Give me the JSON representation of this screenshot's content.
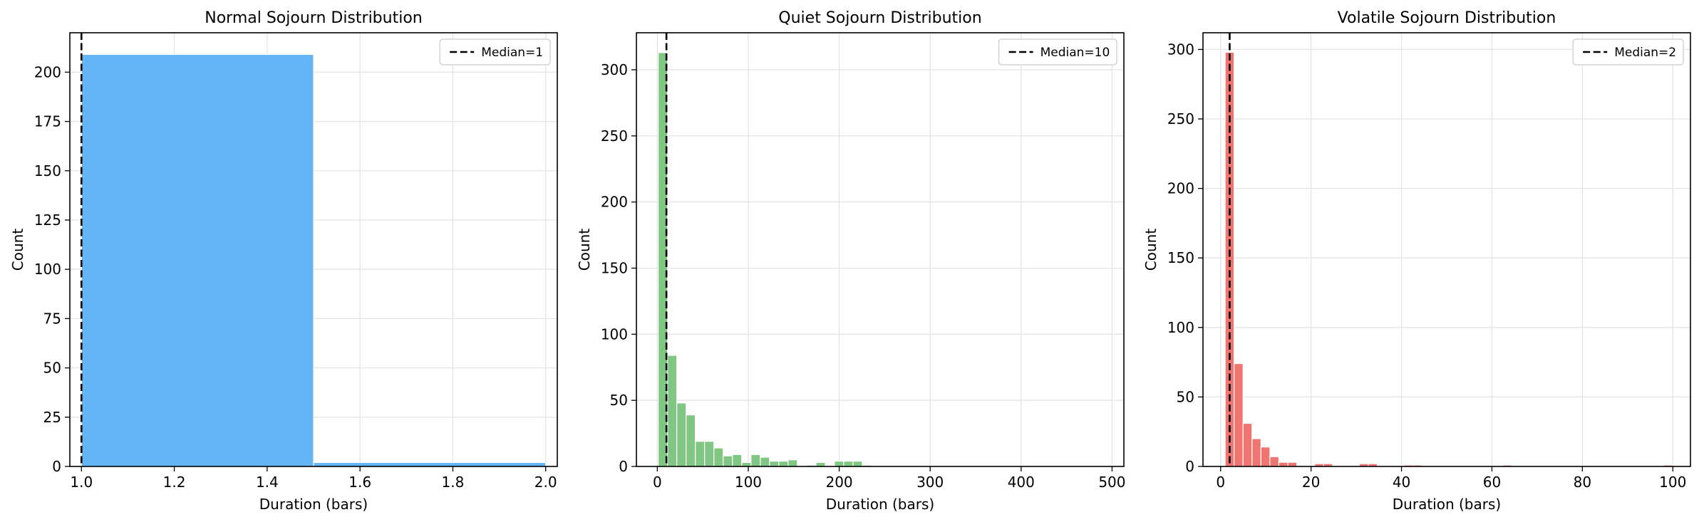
{
  "chart_data": [
    {
      "type": "bar",
      "title": "Normal Sojourn Distribution",
      "xlabel": "Duration (bars)",
      "ylabel": "Count",
      "xlim": [
        0.975,
        2.025
      ],
      "ylim": [
        0,
        220
      ],
      "xticks": [
        1.0,
        1.2,
        1.4,
        1.6,
        1.8,
        2.0
      ],
      "xtick_labels": [
        "1.0",
        "1.2",
        "1.4",
        "1.6",
        "1.8",
        "2.0"
      ],
      "yticks": [
        0,
        25,
        50,
        75,
        100,
        125,
        150,
        175,
        200
      ],
      "ytick_labels": [
        "0",
        "25",
        "50",
        "75",
        "100",
        "125",
        "150",
        "175",
        "200"
      ],
      "bins": [
        [
          1.0,
          1.5
        ],
        [
          1.5,
          2.0
        ]
      ],
      "values": [
        209,
        2
      ],
      "color": "#64b5f6",
      "median": 1,
      "legend": {
        "label": "Median=1",
        "placement": "top-right"
      },
      "grid": true
    },
    {
      "type": "bar",
      "title": "Quiet Sojourn Distribution",
      "xlabel": "Duration (bars)",
      "ylabel": "Count",
      "xlim": [
        -23,
        513
      ],
      "ylim": [
        0,
        328
      ],
      "xticks": [
        0,
        100,
        200,
        300,
        400,
        500
      ],
      "xtick_labels": [
        "0",
        "100",
        "200",
        "300",
        "400",
        "500"
      ],
      "yticks": [
        0,
        50,
        100,
        150,
        200,
        250,
        300
      ],
      "ytick_labels": [
        "0",
        "50",
        "100",
        "150",
        "200",
        "250",
        "300"
      ],
      "bin_start": 1,
      "bin_width": 10.2,
      "values": [
        313,
        84,
        48,
        39,
        19,
        19,
        14,
        8,
        9,
        3,
        9,
        7,
        4,
        4,
        5,
        0,
        1,
        3,
        0,
        4,
        4,
        4,
        1,
        0,
        0,
        0,
        0,
        0,
        0,
        0,
        0,
        0,
        0,
        0,
        0,
        0,
        0,
        0,
        0,
        0,
        0,
        0,
        0,
        0,
        0,
        0,
        0,
        0,
        0,
        0
      ],
      "color": "#81c784",
      "median": 10,
      "legend": {
        "label": "Median=10",
        "placement": "top-right"
      },
      "grid": true
    },
    {
      "type": "bar",
      "title": "Volatile Sojourn Distribution",
      "xlabel": "Duration (bars)",
      "ylabel": "Count",
      "xlim": [
        -3.9,
        103.9
      ],
      "ylim": [
        0,
        312
      ],
      "xticks": [
        0,
        20,
        40,
        60,
        80,
        100
      ],
      "xtick_labels": [
        "0",
        "20",
        "40",
        "60",
        "80",
        "100"
      ],
      "yticks": [
        0,
        50,
        100,
        150,
        200,
        250,
        300
      ],
      "ytick_labels": [
        "0",
        "50",
        "100",
        "150",
        "200",
        "250",
        "300"
      ],
      "bin_start": 1,
      "bin_width": 1.98,
      "values": [
        298,
        74,
        31,
        20,
        14,
        7,
        3,
        3,
        0,
        0,
        2,
        2,
        0,
        0,
        0,
        2,
        2,
        0,
        0,
        0,
        1,
        1,
        0,
        0,
        0,
        0,
        0,
        0,
        0,
        0,
        0,
        1,
        0,
        0,
        0,
        0,
        0,
        0,
        0,
        0,
        0,
        0,
        0,
        0,
        0,
        0,
        0,
        0,
        0,
        1
      ],
      "color": "#f07470",
      "median": 2,
      "legend": {
        "label": "Median=2",
        "placement": "top-right"
      },
      "grid": true
    }
  ]
}
